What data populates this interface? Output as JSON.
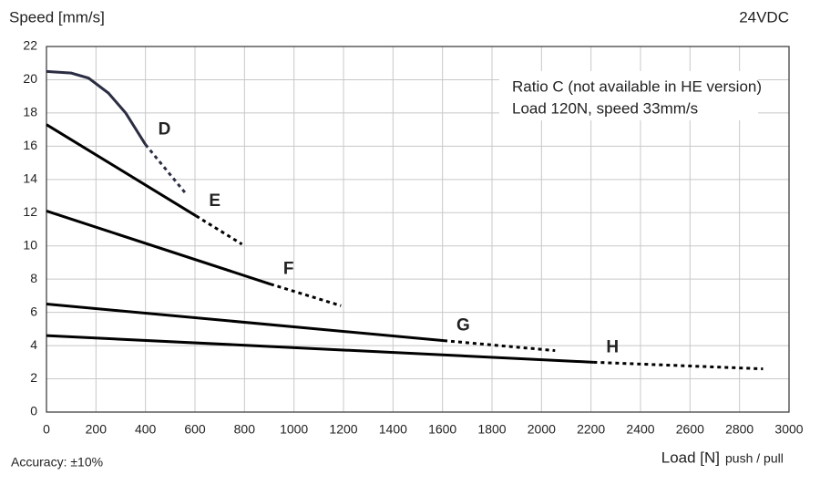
{
  "chart_data": {
    "type": "line",
    "y_label": "Speed [mm/s]",
    "corner_label": "24VDC",
    "x_label": "Load [N]",
    "x_label_note": "push / pull",
    "footnote": "Accuracy: ±10%",
    "annotation": [
      "Ratio C (not available in HE version)",
      "Load 120N, speed 33mm/s"
    ],
    "xlim": [
      0,
      3000
    ],
    "ylim": [
      0,
      22
    ],
    "xticks": [
      0,
      200,
      400,
      600,
      800,
      1000,
      1200,
      1400,
      1600,
      1800,
      2000,
      2200,
      2400,
      2600,
      2800,
      3000
    ],
    "yticks": [
      0,
      2,
      4,
      6,
      8,
      10,
      12,
      14,
      16,
      18,
      20,
      22
    ],
    "grid": true,
    "series": [
      {
        "name": "D",
        "color": "#2b2d42",
        "solid": {
          "x": [
            0,
            100,
            170,
            250,
            320,
            400
          ],
          "values": [
            20.5,
            20.4,
            20.1,
            19.2,
            18,
            16.1
          ]
        },
        "dashed": {
          "x": [
            400,
            560
          ],
          "values": [
            16.1,
            13.2
          ]
        }
      },
      {
        "name": "E",
        "color": "#000000",
        "solid": {
          "x": [
            0,
            605
          ],
          "values": [
            17.3,
            11.8
          ]
        },
        "dashed": {
          "x": [
            605,
            790
          ],
          "values": [
            11.8,
            10.1
          ]
        }
      },
      {
        "name": "F",
        "color": "#000000",
        "solid": {
          "x": [
            0,
            905
          ],
          "values": [
            12.1,
            7.7
          ]
        },
        "dashed": {
          "x": [
            905,
            1190
          ],
          "values": [
            7.7,
            6.4
          ]
        }
      },
      {
        "name": "G",
        "color": "#000000",
        "solid": {
          "x": [
            0,
            1605
          ],
          "values": [
            6.5,
            4.3
          ]
        },
        "dashed": {
          "x": [
            1605,
            2055
          ],
          "values": [
            4.3,
            3.7
          ]
        }
      },
      {
        "name": "H",
        "color": "#000000",
        "solid": {
          "x": [
            0,
            2210
          ],
          "values": [
            4.6,
            3.0
          ]
        },
        "dashed": {
          "x": [
            2210,
            2895
          ],
          "values": [
            3.0,
            2.6
          ]
        }
      }
    ]
  }
}
